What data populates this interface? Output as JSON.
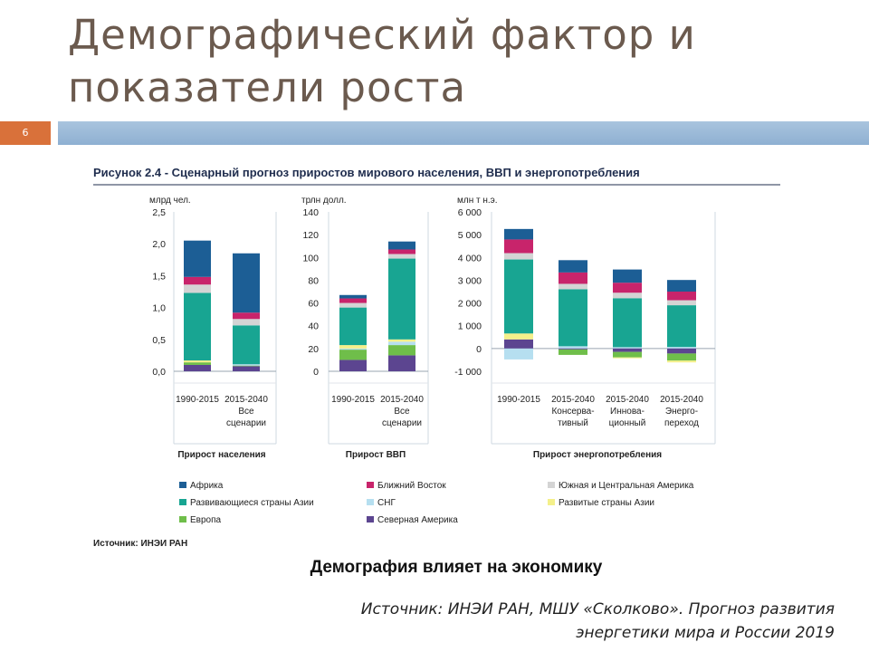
{
  "slide": {
    "title_line1": "Демографический фактор и",
    "title_line2": "показатели роста",
    "page_number": "6",
    "caption": "Демография влияет на экономику",
    "source_line1": "Источник: ИНЭИ РАН, МШУ «Сколково». Прогноз развития",
    "source_line2": "энергетики мира и России 2019"
  },
  "colors": {
    "africa": "#1c5e95",
    "middle_east": "#c8246b",
    "latin_america": "#d4d4d4",
    "dev_asia": "#18a592",
    "cis": "#b6dff0",
    "dev_asia_developed": "#f4f08a",
    "europe": "#6fbe4a",
    "north_america": "#5c4590"
  },
  "chart_data": {
    "type": "bar",
    "stacked": true,
    "title": "Рисунок 2.4 - Сценарный прогноз приростов мирового населения, ВВП и энергопотребления",
    "source_note": "Источник: ИНЭИ РАН",
    "legend": [
      {
        "key": "africa",
        "label": "Африка"
      },
      {
        "key": "middle_east",
        "label": "Ближний Восток"
      },
      {
        "key": "latin_america",
        "label": "Южная и Центральная Америка"
      },
      {
        "key": "dev_asia",
        "label": "Развивающиеся страны Азии"
      },
      {
        "key": "cis",
        "label": "СНГ"
      },
      {
        "key": "dev_asia_developed",
        "label": "Развитые страны Азии"
      },
      {
        "key": "europe",
        "label": "Европа"
      },
      {
        "key": "north_america",
        "label": "Северная Америка"
      }
    ],
    "panels": [
      {
        "name": "Прирост населения",
        "unit": "млрд чел.",
        "ylim": [
          0,
          2.5
        ],
        "yticks": [
          "2,5",
          "2,0",
          "1,5",
          "1,0",
          "0,5",
          "0,0"
        ],
        "ytick_values": [
          2.5,
          2.0,
          1.5,
          1.0,
          0.5,
          0.0
        ],
        "bars": [
          {
            "label": [
              "1990-2015"
            ],
            "segments": {
              "north_america": 0.1,
              "europe": 0.04,
              "cis": 0.0,
              "dev_asia_developed": 0.03,
              "dev_asia": 1.06,
              "latin_america": 0.13,
              "middle_east": 0.12,
              "africa": 0.57
            }
          },
          {
            "label": [
              "2015-2040",
              "Все",
              "сценарии"
            ],
            "segments": {
              "north_america": 0.08,
              "europe": 0.01,
              "cis": 0.02,
              "dev_asia_developed": 0.0,
              "dev_asia": 0.61,
              "latin_america": 0.1,
              "middle_east": 0.1,
              "africa": 0.93
            }
          }
        ]
      },
      {
        "name": "Прирост ВВП",
        "unit": "трлн долл.",
        "ylim": [
          0,
          140
        ],
        "yticks": [
          "140",
          "120",
          "100",
          "80",
          "60",
          "40",
          "20",
          "0"
        ],
        "ytick_values": [
          140,
          120,
          100,
          80,
          60,
          40,
          20,
          0
        ],
        "bars": [
          {
            "label": [
              "1990-2015"
            ],
            "segments": {
              "north_america": 10,
              "europe": 9,
              "cis": 1,
              "dev_asia_developed": 3,
              "dev_asia": 33,
              "latin_america": 4,
              "middle_east": 4,
              "africa": 3
            }
          },
          {
            "label": [
              "2015-2040",
              "Все",
              "сценарии"
            ],
            "segments": {
              "north_america": 14,
              "europe": 9,
              "cis": 3,
              "dev_asia_developed": 2,
              "dev_asia": 71,
              "latin_america": 4,
              "middle_east": 4,
              "africa": 7
            }
          }
        ]
      },
      {
        "name": "Прирост энергопотребления",
        "unit": "млн т н.э.",
        "ylim": [
          -1000,
          6000
        ],
        "yticks": [
          "6 000",
          "5 000",
          "4 000",
          "3 000",
          "2 000",
          "1 000",
          "0",
          "-1 000"
        ],
        "ytick_values": [
          6000,
          5000,
          4000,
          3000,
          2000,
          1000,
          0,
          -1000
        ],
        "bars": [
          {
            "label": [
              "1990-2015"
            ],
            "pos": {
              "north_america": 400,
              "europe": 0,
              "dev_asia_developed": 260,
              "dev_asia": 3250,
              "latin_america": 280,
              "middle_east": 600,
              "africa": 460
            },
            "neg": {
              "cis": -480,
              "europe": 0
            }
          },
          {
            "label": [
              "2015-2040",
              "Консерва-",
              "тивный"
            ],
            "pos": {
              "dev_asia": 2500,
              "cis": 100,
              "latin_america": 240,
              "middle_east": 500,
              "africa": 540
            },
            "neg": {
              "north_america": -40,
              "europe": -240
            }
          },
          {
            "label": [
              "2015-2040",
              "Иннова-",
              "ционный"
            ],
            "pos": {
              "dev_asia": 2150,
              "cis": 60,
              "latin_america": 240,
              "middle_east": 440,
              "africa": 580
            },
            "neg": {
              "north_america": -150,
              "europe": -240,
              "dev_asia_developed": -40
            }
          },
          {
            "label": [
              "2015-2040",
              "Энерго-",
              "переход"
            ],
            "pos": {
              "dev_asia": 1830,
              "cis": 70,
              "latin_america": 220,
              "middle_east": 380,
              "africa": 510
            },
            "neg": {
              "north_america": -220,
              "europe": -310,
              "dev_asia_developed": -80
            }
          }
        ]
      }
    ]
  }
}
